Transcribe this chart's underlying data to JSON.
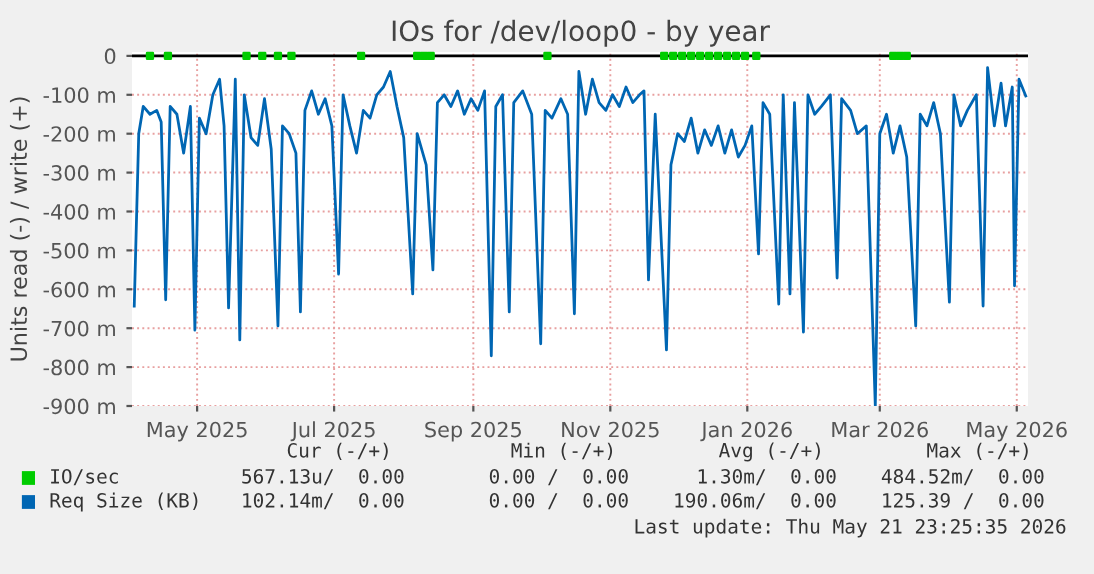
{
  "chart_data": {
    "type": "line",
    "title": "IOs for /dev/loop0 - by year",
    "ylabel": "Units read (-) / write (+)",
    "xlim": [
      "2025-04-17",
      "2026-05-21"
    ],
    "xticks": [
      {
        "value": "2025-05-16",
        "label": "May 2025"
      },
      {
        "value": "2025-07-16",
        "label": "Jul 2025"
      },
      {
        "value": "2025-09-16",
        "label": "Sep 2025"
      },
      {
        "value": "2025-11-16",
        "label": "Nov 2025"
      },
      {
        "value": "2026-01-16",
        "label": "Jan 2026"
      },
      {
        "value": "2026-03-16",
        "label": "Mar 2026"
      },
      {
        "value": "2026-05-16",
        "label": "May 2026"
      }
    ],
    "ylim": [
      -900,
      10
    ],
    "yticks": [
      0,
      {
        "value": -100,
        "label": "-100 m"
      },
      {
        "value": -200,
        "label": "-200 m"
      },
      {
        "value": -300,
        "label": "-300 m"
      },
      {
        "value": -400,
        "label": "-400 m"
      },
      {
        "value": -500,
        "label": "-500 m"
      },
      {
        "value": -600,
        "label": "-600 m"
      },
      {
        "value": -700,
        "label": "-700 m"
      },
      {
        "value": -800,
        "label": "-800 m"
      },
      {
        "value": -900,
        "label": "-900 m"
      }
    ],
    "grid": true,
    "legend": "bottom",
    "ref_lines": [
      {
        "axis": "y",
        "value": 0,
        "color": "#000000"
      }
    ],
    "series": [
      {
        "name": "IO/sec",
        "type": "scatter",
        "color": "#00cc00",
        "x": [
          "2025-04-25",
          "2025-05-03",
          "2025-06-07",
          "2025-06-14",
          "2025-06-21",
          "2025-06-27",
          "2025-07-28",
          "2025-08-22",
          "2025-08-25",
          "2025-08-28",
          "2025-10-19",
          "2025-12-10",
          "2025-12-14",
          "2025-12-18",
          "2025-12-22",
          "2025-12-26",
          "2025-12-30",
          "2026-01-03",
          "2026-01-07",
          "2026-01-11",
          "2026-01-15",
          "2026-01-20",
          "2026-03-22",
          "2026-03-25",
          "2026-03-28"
        ],
        "values": [
          0,
          0,
          0,
          0,
          0,
          0,
          0,
          0,
          0,
          0,
          0,
          0,
          0,
          0,
          0,
          0,
          0,
          0,
          0,
          0,
          0,
          0,
          0,
          0,
          0
        ]
      },
      {
        "name": "Req Size (KB)",
        "color": "#0066b3",
        "x": [
          "2025-04-18",
          "2025-04-20",
          "2025-04-22",
          "2025-04-25",
          "2025-04-28",
          "2025-04-30",
          "2025-05-02",
          "2025-05-04",
          "2025-05-07",
          "2025-05-10",
          "2025-05-13",
          "2025-05-15",
          "2025-05-17",
          "2025-05-20",
          "2025-05-23",
          "2025-05-26",
          "2025-05-28",
          "2025-05-30",
          "2025-06-02",
          "2025-06-04",
          "2025-06-06",
          "2025-06-09",
          "2025-06-12",
          "2025-06-15",
          "2025-06-18",
          "2025-06-21",
          "2025-06-23",
          "2025-06-26",
          "2025-06-29",
          "2025-07-01",
          "2025-07-03",
          "2025-07-06",
          "2025-07-09",
          "2025-07-12",
          "2025-07-15",
          "2025-07-18",
          "2025-07-20",
          "2025-07-23",
          "2025-07-26",
          "2025-07-29",
          "2025-08-01",
          "2025-08-04",
          "2025-08-07",
          "2025-08-10",
          "2025-08-13",
          "2025-08-16",
          "2025-08-20",
          "2025-08-22",
          "2025-08-26",
          "2025-08-29",
          "2025-08-31",
          "2025-09-03",
          "2025-09-06",
          "2025-09-09",
          "2025-09-12",
          "2025-09-15",
          "2025-09-18",
          "2025-09-21",
          "2025-09-24",
          "2025-09-26",
          "2025-09-29",
          "2025-10-02",
          "2025-10-04",
          "2025-10-08",
          "2025-10-12",
          "2025-10-16",
          "2025-10-18",
          "2025-10-21",
          "2025-10-25",
          "2025-10-28",
          "2025-10-31",
          "2025-11-02",
          "2025-11-05",
          "2025-11-08",
          "2025-11-11",
          "2025-11-14",
          "2025-11-17",
          "2025-11-20",
          "2025-11-23",
          "2025-11-26",
          "2025-11-29",
          "2025-12-01",
          "2025-12-03",
          "2025-12-06",
          "2025-12-11",
          "2025-12-13",
          "2025-12-16",
          "2025-12-19",
          "2025-12-22",
          "2025-12-25",
          "2025-12-28",
          "2025-12-31",
          "2026-01-03",
          "2026-01-06",
          "2026-01-09",
          "2026-01-12",
          "2026-01-15",
          "2026-01-18",
          "2026-01-21",
          "2026-01-23",
          "2026-01-26",
          "2026-01-30",
          "2026-02-01",
          "2026-02-04",
          "2026-02-06",
          "2026-02-10",
          "2026-02-12",
          "2026-02-15",
          "2026-02-18",
          "2026-02-22",
          "2026-02-25",
          "2026-02-27",
          "2026-03-03",
          "2026-03-06",
          "2026-03-10",
          "2026-03-14",
          "2026-03-16",
          "2026-03-19",
          "2026-03-22",
          "2026-03-25",
          "2026-03-28",
          "2026-04-01",
          "2026-04-03",
          "2026-04-06",
          "2026-04-09",
          "2026-04-12",
          "2026-04-16",
          "2026-04-18",
          "2026-04-21",
          "2026-04-24",
          "2026-04-28",
          "2026-05-01",
          "2026-05-03",
          "2026-05-06",
          "2026-05-09",
          "2026-05-11",
          "2026-05-14",
          "2026-05-15",
          "2026-05-17",
          "2026-05-20"
        ],
        "values": [
          -643,
          -200,
          -130,
          -150,
          -140,
          -170,
          -627,
          -130,
          -150,
          -250,
          -130,
          -705,
          -160,
          -200,
          -100,
          -60,
          -180,
          -648,
          -60,
          -730,
          -100,
          -210,
          -230,
          -110,
          -240,
          -694,
          -180,
          -200,
          -250,
          -658,
          -140,
          -90,
          -150,
          -110,
          -180,
          -561,
          -100,
          -180,
          -250,
          -140,
          -160,
          -100,
          -80,
          -40,
          -130,
          -210,
          -612,
          -200,
          -280,
          -550,
          -120,
          -100,
          -130,
          -90,
          -150,
          -110,
          -140,
          -90,
          -771,
          -130,
          -100,
          -658,
          -120,
          -90,
          -150,
          -740,
          -140,
          -160,
          -110,
          -150,
          -663,
          -40,
          -150,
          -60,
          -120,
          -140,
          -100,
          -130,
          -80,
          -120,
          -100,
          -90,
          -576,
          -150,
          -756,
          -280,
          -200,
          -220,
          -160,
          -250,
          -190,
          -230,
          -180,
          -250,
          -190,
          -260,
          -230,
          -180,
          -509,
          -120,
          -150,
          -638,
          -100,
          -612,
          -120,
          -710,
          -100,
          -150,
          -130,
          -100,
          -571,
          -110,
          -140,
          -200,
          -180,
          -900,
          -200,
          -150,
          -250,
          -180,
          -260,
          -694,
          -150,
          -180,
          -120,
          -200,
          -633,
          -100,
          -180,
          -140,
          -100,
          -643,
          -30,
          -180,
          -70,
          -180,
          -80,
          -591,
          -60,
          -103
        ]
      }
    ],
    "annotations": [
      "Cur (-/+)",
      "Min (-/+)",
      "Avg (-/+)",
      "Max (-/+)",
      "567.13u/  0.00",
      "0.00 /  0.00",
      "1.30m/  0.00",
      "484.52m/  0.00",
      "102.14m/  0.00",
      "0.00 /  0.00",
      "190.06m/  0.00",
      "125.39 /  0.00",
      "Last update: Thu May 21 23:25:35 2026"
    ]
  }
}
